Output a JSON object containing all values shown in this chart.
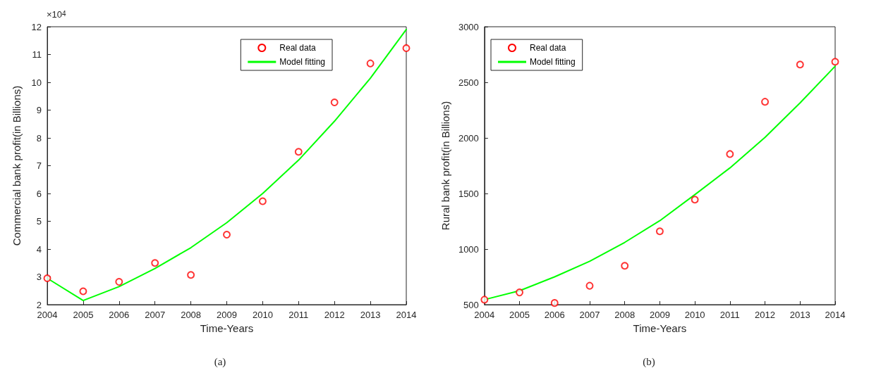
{
  "chart_data": [
    {
      "type": "line",
      "xlabel": "Time-Years",
      "ylabel": "Commercial bank profit(in Billions)",
      "annotations": [
        "×10$^{4}$",
        "(a)"
      ],
      "x": [
        2004,
        2005,
        2006,
        2007,
        2008,
        2009,
        2010,
        2011,
        2012,
        2013,
        2014
      ],
      "xlim": [
        2004,
        2014
      ],
      "xticks": [
        2004,
        2005,
        2006,
        2007,
        2008,
        2009,
        2010,
        2011,
        2012,
        2013,
        2014
      ],
      "ylim": [
        2,
        12
      ],
      "yticks": [
        2,
        3,
        4,
        5,
        6,
        7,
        8,
        9,
        10,
        11,
        12
      ],
      "grid": false,
      "legend": "top right",
      "series": [
        {
          "name": "Real data",
          "type": "scatter",
          "marker": "circle",
          "color": "#ff0000",
          "values": [
            2.95,
            2.48,
            2.82,
            3.5,
            3.07,
            4.52,
            5.72,
            7.5,
            9.28,
            10.68,
            11.23
          ]
        },
        {
          "name": "Model fitting",
          "type": "line",
          "marker": "none",
          "line_style": "solid",
          "color": "#00ff00",
          "values": [
            2.95,
            2.15,
            2.65,
            3.3,
            4.05,
            4.95,
            6.0,
            7.2,
            8.6,
            10.15,
            11.9
          ]
        }
      ]
    },
    {
      "type": "line",
      "xlabel": "Time-Years",
      "ylabel": "Rural bank profit(in Billions)",
      "annotations": [
        "(b)"
      ],
      "x": [
        2004,
        2005,
        2006,
        2007,
        2008,
        2009,
        2010,
        2011,
        2012,
        2013,
        2014
      ],
      "xlim": [
        2004,
        2014
      ],
      "xticks": [
        2004,
        2005,
        2006,
        2007,
        2008,
        2009,
        2010,
        2011,
        2012,
        2013,
        2014
      ],
      "ylim": [
        500,
        3000
      ],
      "yticks": [
        500,
        1000,
        1500,
        2000,
        2500,
        3000
      ],
      "grid": false,
      "legend": "top left",
      "series": [
        {
          "name": "Real data",
          "type": "scatter",
          "marker": "circle",
          "color": "#ff0000",
          "values": [
            545,
            610,
            515,
            670,
            850,
            1160,
            1445,
            1855,
            2325,
            2660,
            2685
          ]
        },
        {
          "name": "Model fitting",
          "type": "line",
          "marker": "none",
          "line_style": "solid",
          "color": "#00ff00",
          "values": [
            545,
            625,
            750,
            890,
            1060,
            1255,
            1490,
            1730,
            2005,
            2315,
            2645
          ]
        }
      ]
    }
  ]
}
